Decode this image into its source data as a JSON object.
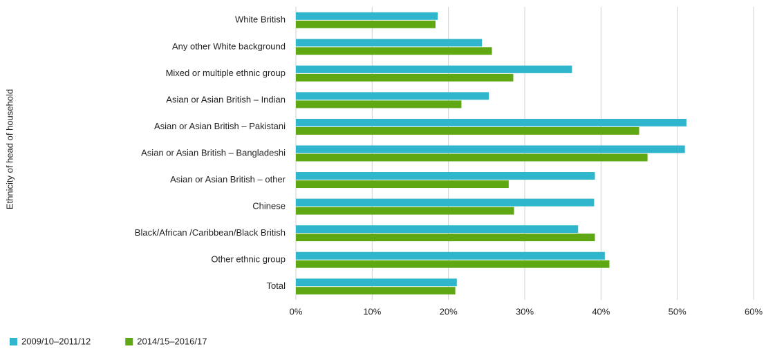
{
  "chart_data": {
    "type": "bar",
    "orientation": "horizontal",
    "y_label": "Ethnicity of head of household",
    "categories": [
      "White British",
      "Any other White background",
      "Mixed or multiple ethnic group",
      "Asian or Asian British – Indian",
      "Asian or Asian British – Pakistani",
      "Asian or Asian British – Bangladeshi",
      "Asian or Asian British – other",
      "Chinese",
      "Black/African /Caribbean/Black British",
      "Other ethnic group",
      "Total"
    ],
    "series": [
      {
        "name": "2009/10–2011/12",
        "color": "#2fb5cc",
        "values": [
          18.6,
          24.4,
          36.2,
          25.3,
          51.2,
          51.0,
          39.2,
          39.1,
          37.0,
          40.5,
          21.1
        ]
      },
      {
        "name": "2014/15–2016/17",
        "color": "#5fa814",
        "values": [
          18.3,
          25.7,
          28.5,
          21.7,
          45.0,
          46.1,
          27.9,
          28.6,
          39.2,
          41.1,
          20.9
        ]
      }
    ],
    "xlim": [
      0,
      60
    ],
    "xticks": [
      {
        "value": 0,
        "label": "0%"
      },
      {
        "value": 10,
        "label": "10%"
      },
      {
        "value": 20,
        "label": "20%"
      },
      {
        "value": 30,
        "label": "30%"
      },
      {
        "value": 40,
        "label": "40%"
      },
      {
        "value": 50,
        "label": "50%"
      },
      {
        "value": 60,
        "label": "60%"
      }
    ],
    "grid": true,
    "legend": "bottom-left"
  }
}
